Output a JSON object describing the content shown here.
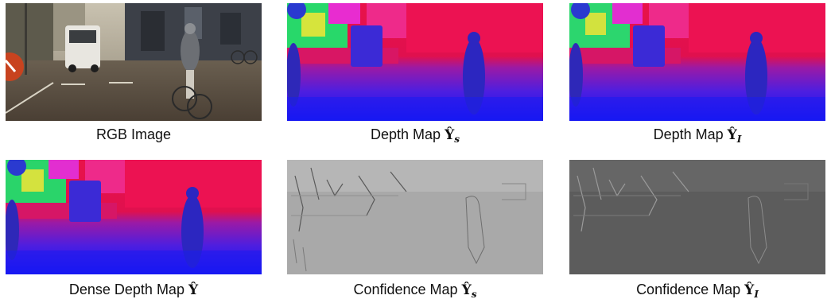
{
  "figure": {
    "panels": [
      {
        "id": "rgb",
        "caption_text": "RGB Image",
        "symbol": "",
        "subscript": ""
      },
      {
        "id": "depth_s",
        "caption_text": "Depth Map",
        "symbol": "Ŷ",
        "subscript": "s"
      },
      {
        "id": "depth_i",
        "caption_text": "Depth Map",
        "symbol": "Ŷ",
        "subscript": "I"
      },
      {
        "id": "dense",
        "caption_text": "Dense Depth Map",
        "symbol": "Ŷ",
        "subscript": ""
      },
      {
        "id": "conf_s",
        "caption_text": "Confidence Map",
        "symbol": "Ŷ",
        "subscript": "s"
      },
      {
        "id": "conf_i",
        "caption_text": "Confidence Map",
        "symbol": "Ŷ",
        "subscript": "I"
      }
    ]
  }
}
